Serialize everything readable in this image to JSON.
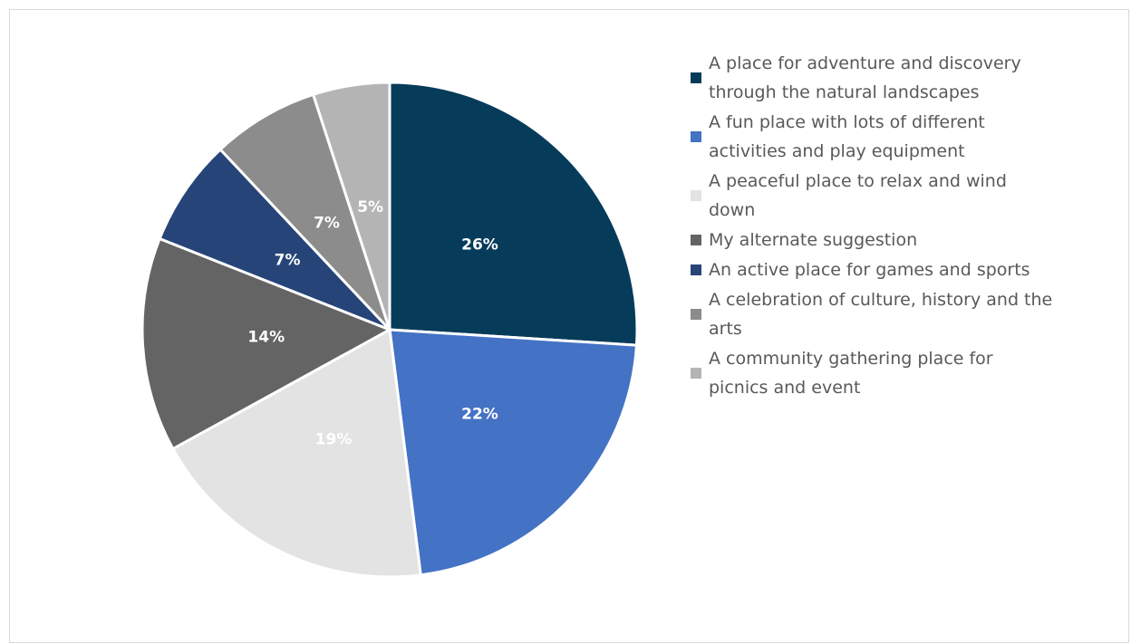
{
  "chart_data": {
    "type": "pie",
    "categories": [
      "A place for adventure and discovery through the natural landscapes",
      "A fun place with lots of different activities and play equipment",
      "A peaceful place to relax and wind down",
      "My alternate suggestion",
      "An active place for games and sports",
      "A celebration of culture, history and the arts",
      "A community gathering place for picnics and event"
    ],
    "values": [
      26,
      22,
      19,
      14,
      7,
      7,
      5
    ],
    "value_labels": [
      "26%",
      "22%",
      "19%",
      "14%",
      "7%",
      "7%",
      "5%"
    ],
    "colors": [
      "#073b5a",
      "#4472c4",
      "#e3e3e3",
      "#646464",
      "#264478",
      "#8c8c8c",
      "#b4b4b4"
    ],
    "legend": "right"
  }
}
